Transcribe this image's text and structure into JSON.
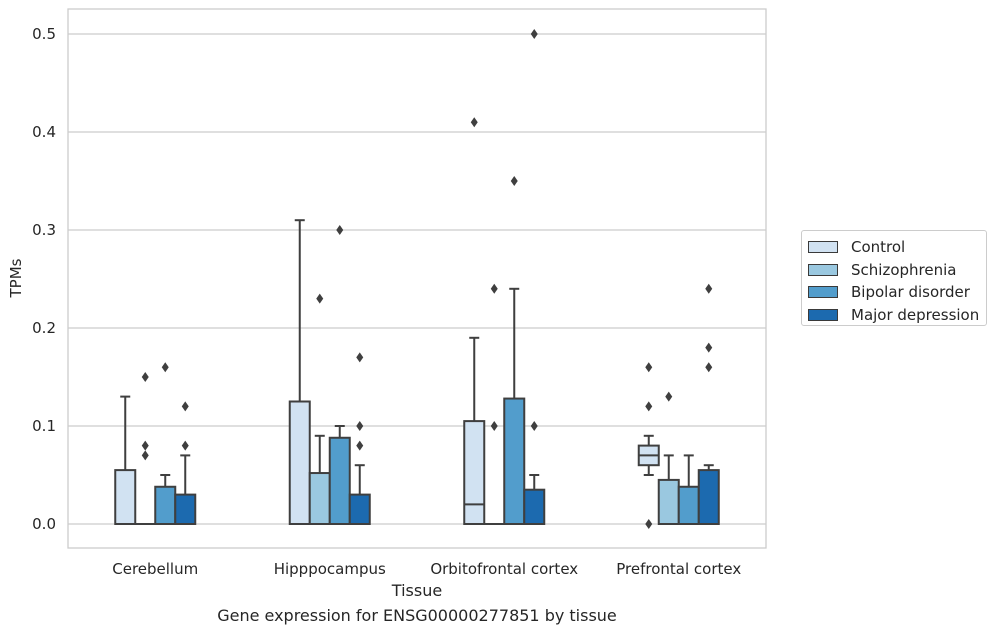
{
  "chart_data": {
    "type": "boxplot",
    "title": "",
    "caption": "Gene expression for ENSG00000277851 by tissue",
    "xlabel": "Tissue",
    "ylabel": "TPMs",
    "ylim": [
      -0.025,
      0.525
    ],
    "yticks": [
      "0.0",
      "0.1",
      "0.2",
      "0.3",
      "0.4",
      "0.5"
    ],
    "grid": "horizontal",
    "legend_position": "right",
    "categories": [
      "Cerebellum",
      "Hipppocampus",
      "Orbitofrontal cortex",
      "Prefrontal cortex"
    ],
    "series": [
      {
        "name": "Control",
        "color": "#d1e2f2",
        "boxes": [
          {
            "q1": 0.0,
            "median": 0.0,
            "q3": 0.055,
            "whisker_low": 0.0,
            "whisker_high": 0.13,
            "outliers": []
          },
          {
            "q1": 0.0,
            "median": 0.0,
            "q3": 0.125,
            "whisker_low": 0.0,
            "whisker_high": 0.31,
            "outliers": []
          },
          {
            "q1": 0.0,
            "median": 0.02,
            "q3": 0.105,
            "whisker_low": 0.0,
            "whisker_high": 0.19,
            "outliers": [
              0.41
            ]
          },
          {
            "q1": 0.06,
            "median": 0.07,
            "q3": 0.08,
            "whisker_low": 0.05,
            "whisker_high": 0.09,
            "outliers": [
              0.0,
              0.12,
              0.16
            ]
          }
        ]
      },
      {
        "name": "Schizophrenia",
        "color": "#9ac8e0",
        "boxes": [
          {
            "q1": 0.0,
            "median": 0.0,
            "q3": 0.0,
            "whisker_low": 0.0,
            "whisker_high": 0.0,
            "outliers": [
              0.07,
              0.08,
              0.15
            ]
          },
          {
            "q1": 0.0,
            "median": 0.0,
            "q3": 0.052,
            "whisker_low": 0.0,
            "whisker_high": 0.09,
            "outliers": [
              0.23
            ]
          },
          {
            "q1": 0.0,
            "median": 0.0,
            "q3": 0.0,
            "whisker_low": 0.0,
            "whisker_high": 0.0,
            "outliers": [
              0.1,
              0.24
            ]
          },
          {
            "q1": 0.0,
            "median": 0.0,
            "q3": 0.045,
            "whisker_low": 0.0,
            "whisker_high": 0.07,
            "outliers": [
              0.13
            ]
          }
        ]
      },
      {
        "name": "Bipolar disorder",
        "color": "#529dcc",
        "boxes": [
          {
            "q1": 0.0,
            "median": 0.0,
            "q3": 0.038,
            "whisker_low": 0.0,
            "whisker_high": 0.05,
            "outliers": [
              0.16
            ]
          },
          {
            "q1": 0.0,
            "median": 0.0,
            "q3": 0.088,
            "whisker_low": 0.0,
            "whisker_high": 0.1,
            "outliers": [
              0.3
            ]
          },
          {
            "q1": 0.0,
            "median": 0.0,
            "q3": 0.128,
            "whisker_low": 0.0,
            "whisker_high": 0.24,
            "outliers": [
              0.35
            ]
          },
          {
            "q1": 0.0,
            "median": 0.0,
            "q3": 0.038,
            "whisker_low": 0.0,
            "whisker_high": 0.07,
            "outliers": []
          }
        ]
      },
      {
        "name": "Major depression",
        "color": "#1c6aaf",
        "boxes": [
          {
            "q1": 0.0,
            "median": 0.0,
            "q3": 0.03,
            "whisker_low": 0.0,
            "whisker_high": 0.07,
            "outliers": [
              0.08,
              0.12
            ]
          },
          {
            "q1": 0.0,
            "median": 0.0,
            "q3": 0.03,
            "whisker_low": 0.0,
            "whisker_high": 0.06,
            "outliers": [
              0.08,
              0.1,
              0.17
            ]
          },
          {
            "q1": 0.0,
            "median": 0.0,
            "q3": 0.035,
            "whisker_low": 0.0,
            "whisker_high": 0.05,
            "outliers": [
              0.1,
              0.5
            ]
          },
          {
            "q1": 0.0,
            "median": 0.0,
            "q3": 0.055,
            "whisker_low": 0.0,
            "whisker_high": 0.06,
            "outliers": [
              0.16,
              0.18,
              0.24
            ]
          }
        ]
      }
    ]
  }
}
